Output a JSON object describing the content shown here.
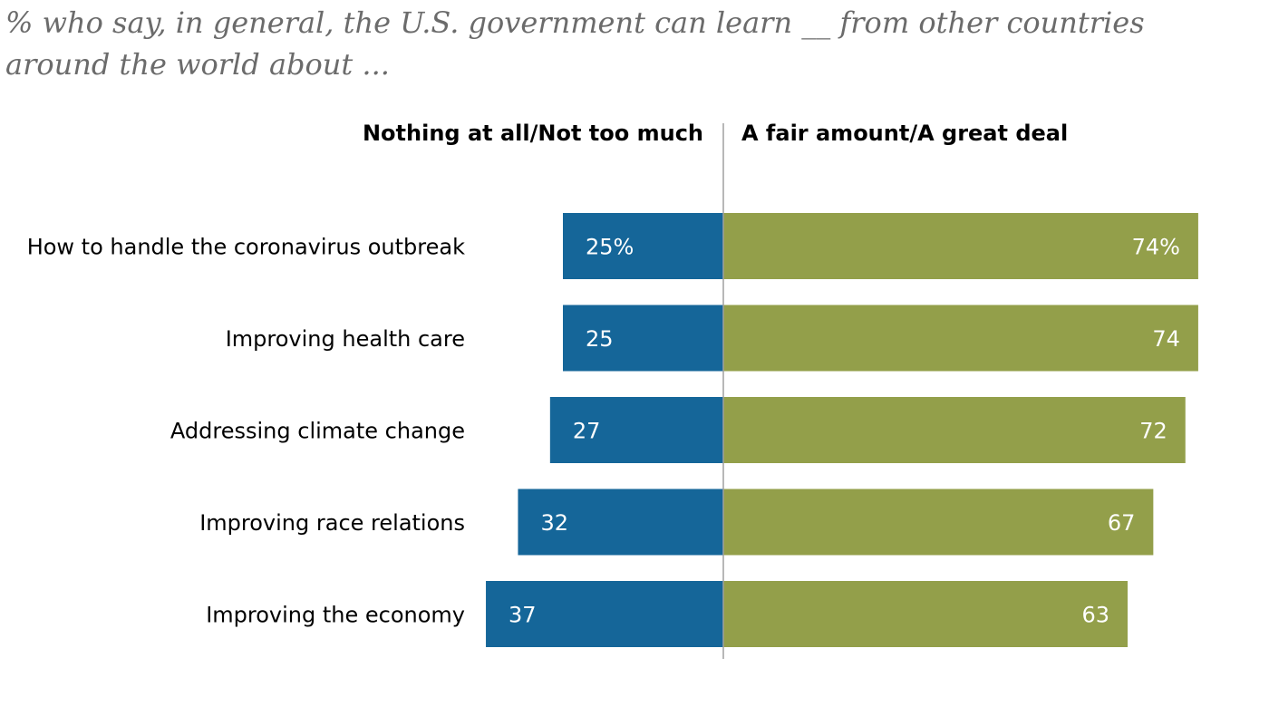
{
  "subtitle": "% who say, in general, the U.S. government can learn __ from other countries around the world about ...",
  "chart_data": {
    "type": "bar",
    "orientation": "horizontal-diverging",
    "categories": [
      "How to handle the coronavirus outbreak",
      "Improving health care",
      "Addressing climate change",
      "Improving race relations",
      "Improving the economy"
    ],
    "series": [
      {
        "name": "Nothing at all/Not too much",
        "side": "left",
        "color": "#156699",
        "values": [
          25,
          25,
          27,
          32,
          37
        ],
        "labels": [
          "25%",
          "25",
          "27",
          "32",
          "37"
        ]
      },
      {
        "name": "A fair amount/A great deal",
        "side": "right",
        "color": "#939f4a",
        "values": [
          74,
          74,
          72,
          67,
          63
        ],
        "labels": [
          "74%",
          "74",
          "72",
          "67",
          "63"
        ]
      }
    ],
    "xlim": [
      0,
      100
    ],
    "divider_color": "#a0a0a0"
  }
}
